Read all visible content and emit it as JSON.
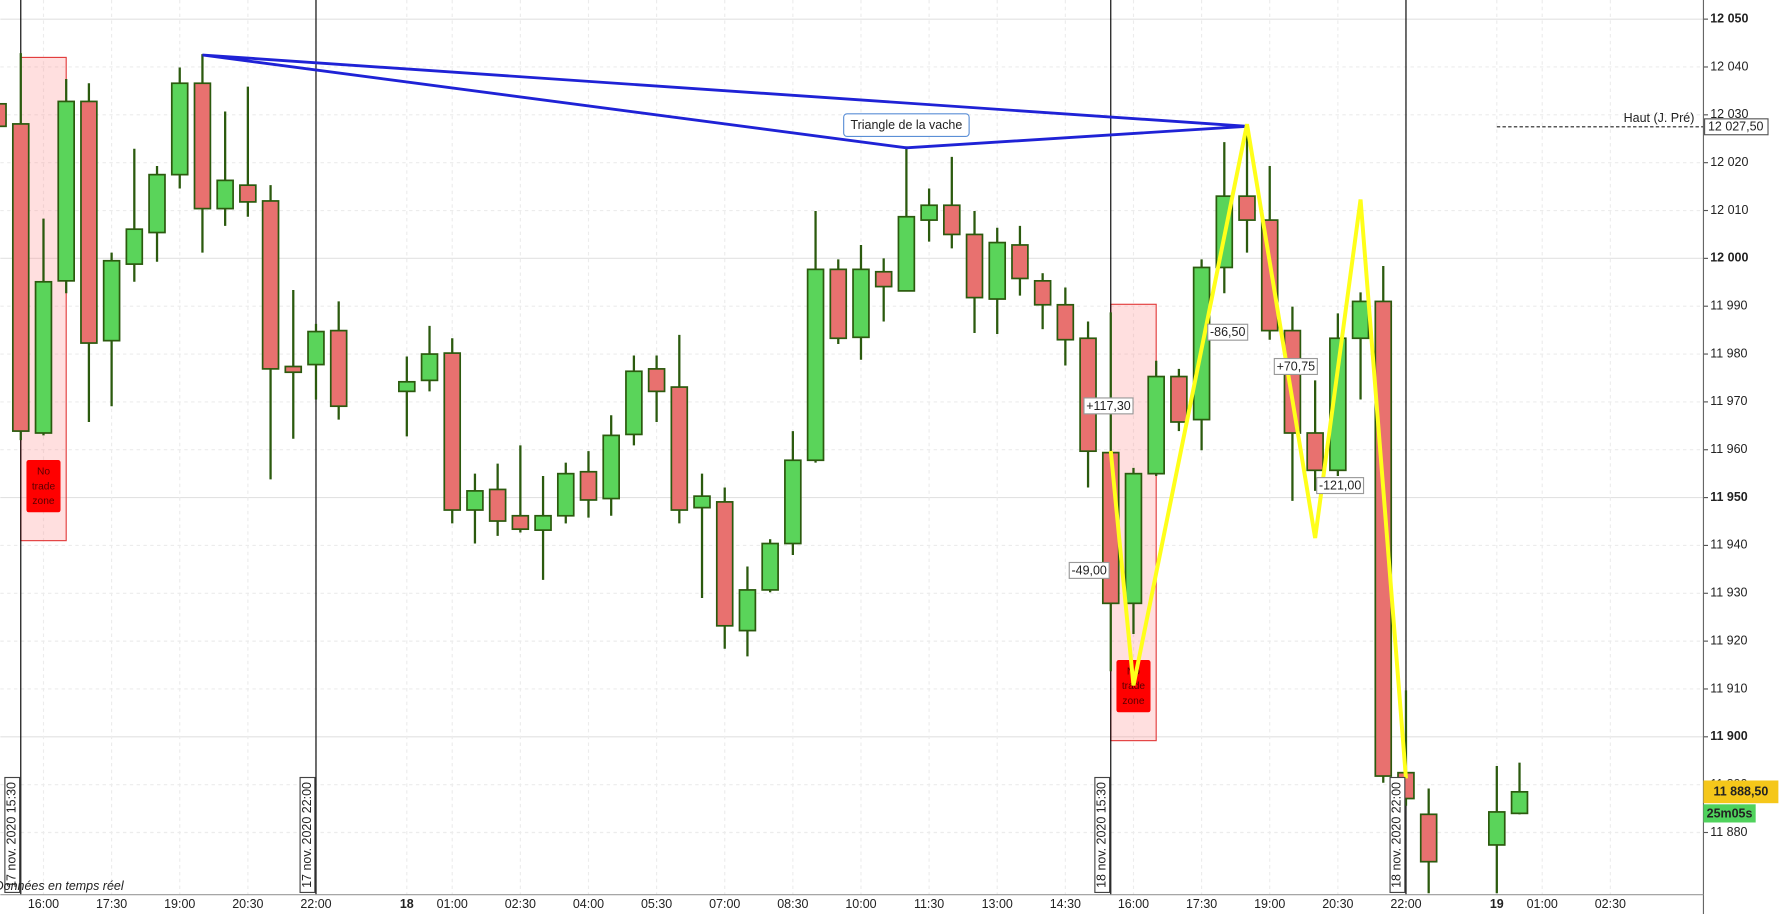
{
  "chart_data": {
    "type": "candlestick",
    "categories": [
      null,
      null,
      "16:00",
      null,
      null,
      "17:30",
      null,
      null,
      "19:00",
      null,
      null,
      "20:30",
      null,
      null,
      "22:00",
      null,
      null,
      null,
      "18",
      null,
      "01:00",
      null,
      null,
      "02:30",
      null,
      null,
      "04:00",
      null,
      null,
      "05:30",
      null,
      null,
      "07:00",
      null,
      null,
      "08:30",
      null,
      null,
      "10:00",
      null,
      null,
      "11:30",
      null,
      null,
      "13:00",
      null,
      null,
      "14:30",
      null,
      null,
      "16:00",
      null,
      null,
      "17:30",
      null,
      null,
      "19:00",
      null,
      null,
      "20:30",
      null,
      null,
      "22:00",
      null,
      null,
      null,
      "19",
      null,
      "01:00",
      null,
      null,
      "02:30",
      null,
      null,
      null
    ],
    "open": [
      12032.3,
      12028.1,
      11963.5,
      11995.3,
      12032.8,
      11982.8,
      11998.8,
      12005.4,
      12017.5,
      12036.6,
      12010.4,
      12015.3,
      12012.0,
      11977.4,
      11977.8,
      11984.9,
      null,
      null,
      11972.2,
      11974.5,
      11980.2,
      11947.4,
      11951.7,
      11946.2,
      11943.2,
      11946.2,
      11955.4,
      11949.8,
      11963.2,
      11976.9,
      11973.1,
      11947.9,
      11949.1,
      11922.2,
      11930.7,
      11940.4,
      11957.8,
      11997.7,
      11983.5,
      11997.2,
      11993.2,
      12008.0,
      12011.1,
      12005.0,
      11991.5,
      12002.8,
      11995.3,
      11990.3,
      11983.3,
      11959.4,
      11927.9,
      11955.0,
      11975.3,
      11966.3,
      11998.1,
      12013.0,
      12008.0,
      11984.9,
      11963.5,
      11955.7,
      11983.3,
      11991.0,
      11892.5,
      11883.8,
      null,
      null,
      11877.4,
      11884.0,
      null,
      null,
      null,
      null,
      null,
      null,
      null
    ],
    "high": [
      12034.0,
      12042.9,
      12008.3,
      12037.5,
      12036.6,
      12001.2,
      12022.9,
      12019.3,
      12039.9,
      12042.7,
      12030.7,
      12035.9,
      12015.3,
      11993.4,
      11986.3,
      11991.0,
      null,
      null,
      11979.5,
      11985.9,
      11983.3,
      11955.0,
      11957.1,
      11960.9,
      11954.5,
      11957.3,
      11959.7,
      11967.2,
      11979.7,
      11979.7,
      11984.0,
      11955.0,
      11952.1,
      11935.6,
      11941.3,
      11963.9,
      12009.9,
      11999.8,
      12002.8,
      12000.0,
      12023.4,
      12014.6,
      12021.2,
      12009.9,
      12006.4,
      12006.8,
      11996.9,
      11993.9,
      11986.8,
      11988.7,
      11956.2,
      11978.6,
      11976.9,
      11999.8,
      12024.3,
      12026.9,
      12019.3,
      11989.9,
      11974.5,
      11988.5,
      11992.9,
      11998.4,
      11909.7,
      11889.2,
      null,
      null,
      11893.9,
      11894.6,
      null,
      null,
      null,
      null,
      null,
      null,
      null
    ],
    "low": [
      12025.0,
      11962.0,
      11963.0,
      11992.7,
      11965.8,
      11969.1,
      11995.1,
      11999.3,
      12014.6,
      12001.2,
      12006.8,
      12008.7,
      11953.8,
      11962.3,
      11970.5,
      11966.3,
      null,
      null,
      11962.8,
      11972.2,
      11944.6,
      11940.4,
      11942.0,
      11942.7,
      11932.8,
      11944.6,
      11945.8,
      11946.2,
      11960.9,
      11965.8,
      11944.6,
      11929.0,
      11918.4,
      11916.8,
      11930.2,
      11938.0,
      11957.3,
      11982.1,
      11978.8,
      11986.8,
      11993.2,
      12003.5,
      12002.1,
      11984.4,
      11984.2,
      11992.2,
      11985.2,
      11977.6,
      11952.1,
      11913.7,
      11921.5,
      11954.5,
      11963.9,
      11959.9,
      11992.7,
      12001.2,
      11983.0,
      11949.3,
      11951.4,
      11954.5,
      11970.5,
      11890.4,
      11885.6,
      11867.3,
      null,
      null,
      11867.3,
      11883.8,
      null,
      null,
      null,
      null,
      null,
      null,
      null
    ],
    "close": [
      12027.6,
      11963.9,
      11995.1,
      12032.8,
      11982.3,
      11999.5,
      12006.1,
      12017.5,
      12036.6,
      12010.4,
      12016.3,
      12011.8,
      11976.9,
      11976.2,
      11984.7,
      11969.1,
      null,
      null,
      11974.2,
      11980.0,
      11947.4,
      11951.4,
      11945.1,
      11943.4,
      11946.2,
      11955.0,
      11949.5,
      11963.0,
      11976.4,
      11972.2,
      11947.4,
      11950.3,
      11923.2,
      11930.7,
      11940.4,
      11957.8,
      11997.7,
      11983.3,
      11997.7,
      11994.1,
      12008.7,
      12011.1,
      12005.0,
      11991.8,
      12003.3,
      11995.8,
      11990.3,
      11983.0,
      11959.7,
      11927.9,
      11955.0,
      11975.3,
      11965.8,
      11998.1,
      12013.0,
      12008.0,
      11984.9,
      11963.5,
      11955.7,
      11983.3,
      11991.0,
      11891.8,
      11887.1,
      11873.9,
      null,
      null,
      11884.3,
      11888.5,
      null,
      null,
      null,
      null,
      null,
      null,
      null
    ],
    "up_color": "#5ad45a",
    "down_color": "#e8716f",
    "ylim": [
      11867,
      12054
    ],
    "yticks": [
      {
        "value": 12050,
        "label": "12 050"
      },
      {
        "value": 12040,
        "label": "12 040"
      },
      {
        "value": 12030,
        "label": "12 030"
      },
      {
        "value": 12020,
        "label": "12 020"
      },
      {
        "value": 12010,
        "label": "12 010"
      },
      {
        "value": 12000,
        "label": "12 000"
      },
      {
        "value": 11990,
        "label": "11 990"
      },
      {
        "value": 11980,
        "label": "11 980"
      },
      {
        "value": 11970,
        "label": "11 970"
      },
      {
        "value": 11960,
        "label": "11 960"
      },
      {
        "value": 11950,
        "label": "11 950"
      },
      {
        "value": 11940,
        "label": "11 940"
      },
      {
        "value": 11930,
        "label": "11 930"
      },
      {
        "value": 11920,
        "label": "11 920"
      },
      {
        "value": 11910,
        "label": "11 910"
      },
      {
        "value": 11900,
        "label": "11 900"
      },
      {
        "value": 11890,
        "label": "11 890"
      },
      {
        "value": 11880,
        "label": "11 880"
      }
    ],
    "grid": true,
    "session_markers": [
      {
        "at": 1,
        "label": "17 nov. 2020 15:30"
      },
      {
        "at": 14,
        "label": "17 nov. 2020 22:00"
      },
      {
        "at": 49,
        "label": "18 nov. 2020 15:30"
      },
      {
        "at": 62,
        "label": "18 nov. 2020 22:00"
      }
    ],
    "no_trade_zones": [
      {
        "from": 1,
        "to": 2,
        "top": 12042,
        "bottom": 11941,
        "label": "No trade zone"
      },
      {
        "from": 49,
        "to": 50,
        "top": 11990.4,
        "bottom": 11899.2,
        "label": "No trade zone"
      }
    ],
    "triangle": {
      "color": "#1f22d6",
      "label": "Triangle de la vache",
      "points": [
        {
          "at": 9,
          "value": 12042.5
        },
        {
          "at": 40,
          "value": 12023.1
        },
        {
          "at": 55,
          "value": 12027.6
        }
      ]
    },
    "zigzag": {
      "color": "#ffff1a",
      "points": [
        {
          "at": 49,
          "value": 11959.75
        },
        {
          "at": 50,
          "value": 11910.75
        },
        {
          "at": 55,
          "value": 12028.05
        },
        {
          "at": 58,
          "value": 11941.55
        },
        {
          "at": 60,
          "value": 12012.3
        },
        {
          "at": 62,
          "value": 11891.3
        }
      ],
      "labels": [
        "-49,00",
        "+117,30",
        "-86,50",
        "+70,75",
        "-121,00"
      ]
    },
    "reference_line": {
      "label": "Haut (J. Pré)",
      "value": 12027.5,
      "value_label": "12 027,50",
      "from": 66
    },
    "last_price": {
      "value": 11888.5,
      "label": "11 888,50",
      "timer": "25m05s"
    },
    "footer": "Données en temps réel"
  }
}
